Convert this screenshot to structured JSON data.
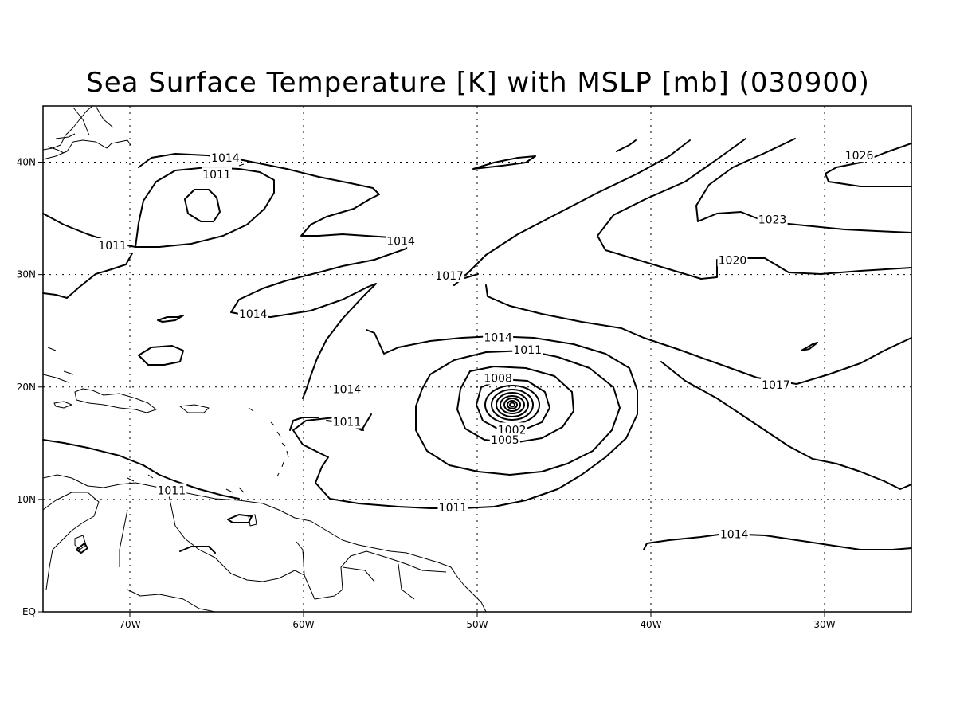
{
  "title": "Sea Surface Temperature [K] with MSLP [mb] (030900)",
  "map": {
    "lon_range": [
      -75,
      -25
    ],
    "lat_range": [
      0,
      45
    ],
    "x_ticks": [
      {
        "lon": -70,
        "label": "70W"
      },
      {
        "lon": -60,
        "label": "60W"
      },
      {
        "lon": -50,
        "label": "50W"
      },
      {
        "lon": -40,
        "label": "40W"
      },
      {
        "lon": -30,
        "label": "30W"
      }
    ],
    "y_ticks": [
      {
        "lat": 0,
        "label": "EQ"
      },
      {
        "lat": 10,
        "label": "10N"
      },
      {
        "lat": 20,
        "label": "20N"
      },
      {
        "lat": 30,
        "label": "30N"
      },
      {
        "lat": 40,
        "label": "40N"
      }
    ],
    "grid": "dotted",
    "contour_interval_mb": 3,
    "storm_center": {
      "lon": -48.3,
      "lat": 18.5
    },
    "contour_labels": [
      {
        "text": "1014",
        "lon": -64.5,
        "lat": 40.4
      },
      {
        "text": "1011",
        "lon": -65.0,
        "lat": 38.9
      },
      {
        "text": "1011",
        "lon": -71.0,
        "lat": 32.6
      },
      {
        "text": "1014",
        "lon": -54.4,
        "lat": 33.0
      },
      {
        "text": "1014",
        "lon": -62.9,
        "lat": 26.5
      },
      {
        "text": "1017",
        "lon": -51.6,
        "lat": 29.9
      },
      {
        "text": "1014",
        "lon": -48.8,
        "lat": 24.4
      },
      {
        "text": "1011",
        "lon": -47.1,
        "lat": 23.3
      },
      {
        "text": "1008",
        "lon": -48.8,
        "lat": 20.8
      },
      {
        "text": "1014",
        "lon": -57.5,
        "lat": 19.8
      },
      {
        "text": "1011",
        "lon": -57.5,
        "lat": 16.9
      },
      {
        "text": "1002",
        "lon": -48.0,
        "lat": 16.2
      },
      {
        "text": "1005",
        "lon": -48.4,
        "lat": 15.3
      },
      {
        "text": "1011",
        "lon": -67.6,
        "lat": 10.8
      },
      {
        "text": "1011",
        "lon": -51.4,
        "lat": 9.3
      },
      {
        "text": "1014",
        "lon": -35.2,
        "lat": 6.9
      },
      {
        "text": "1017",
        "lon": -32.8,
        "lat": 20.2
      },
      {
        "text": "1020",
        "lon": -35.3,
        "lat": 31.3
      },
      {
        "text": "1023",
        "lon": -33.0,
        "lat": 34.9
      },
      {
        "text": "1026",
        "lon": -28.0,
        "lat": 40.6
      }
    ]
  }
}
